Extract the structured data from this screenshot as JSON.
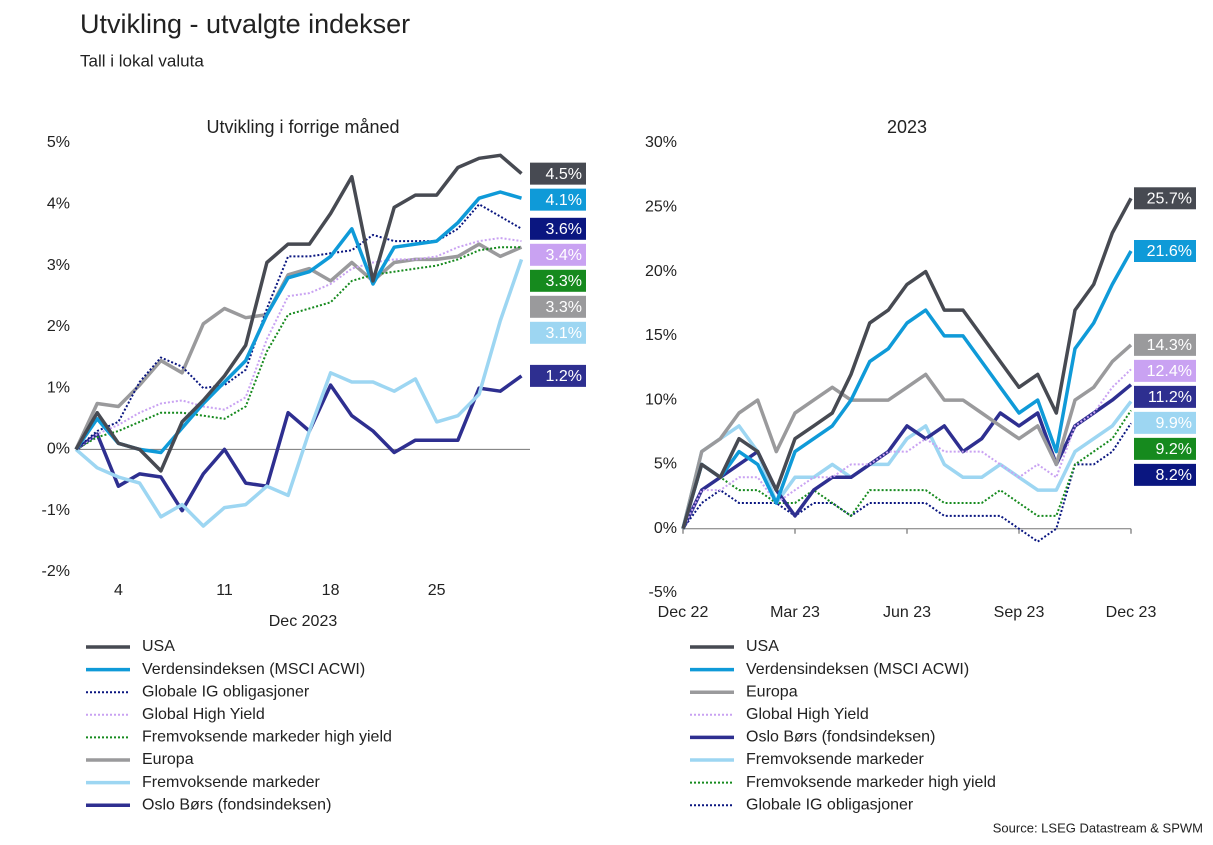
{
  "header": {
    "title": "Utvikling - utvalgte indekser",
    "subtitle": "Tall i lokal valuta"
  },
  "source": "Source: LSEG Datastream & SPWM",
  "chart_data": [
    {
      "type": "line",
      "title": "Utvikling i forrige måned",
      "xlabel": "Dec 2023",
      "categories": [
        null,
        null,
        "4",
        null,
        null,
        null,
        null,
        "11",
        null,
        null,
        null,
        null,
        "18",
        null,
        null,
        null,
        null,
        "25",
        null,
        null,
        null,
        null
      ],
      "ylim": [
        -2,
        5
      ],
      "yticks": [
        {
          "value": -2,
          "label": "-2%"
        },
        {
          "value": -1,
          "label": "-1%"
        },
        {
          "value": 0,
          "label": "0%"
        },
        {
          "value": 1,
          "label": "1%"
        },
        {
          "value": 2,
          "label": "2%"
        },
        {
          "value": 3,
          "label": "3%"
        },
        {
          "value": 4,
          "label": "4%"
        },
        {
          "value": 5,
          "label": "5%"
        }
      ],
      "series": [
        {
          "name": "USA",
          "color": "#474a52",
          "dash": "solid",
          "end_label": "4.5%",
          "values": [
            0,
            0.6,
            0.1,
            0.0,
            -0.35,
            0.45,
            0.8,
            1.2,
            1.7,
            3.05,
            3.35,
            3.35,
            3.85,
            4.45,
            2.75,
            3.95,
            4.15,
            4.15,
            4.6,
            4.75,
            4.8,
            4.5
          ]
        },
        {
          "name": "Verdensindeksen (MSCI ACWI)",
          "color": "#0f9ad8",
          "dash": "solid",
          "end_label": "4.1%",
          "values": [
            0,
            0.5,
            0.1,
            0.0,
            -0.05,
            0.35,
            0.75,
            1.1,
            1.45,
            2.2,
            2.8,
            2.9,
            3.15,
            3.6,
            2.7,
            3.3,
            3.35,
            3.4,
            3.7,
            4.1,
            4.2,
            4.1
          ]
        },
        {
          "name": "Globale IG obligasjoner",
          "color": "#0a1680",
          "dash": "dotted",
          "end_label": "3.6%",
          "values": [
            0,
            0.3,
            0.45,
            1.1,
            1.5,
            1.35,
            1.0,
            1.05,
            1.3,
            2.3,
            3.15,
            3.15,
            3.2,
            3.25,
            3.5,
            3.4,
            3.4,
            3.4,
            3.6,
            4.0,
            3.8,
            3.6
          ]
        },
        {
          "name": "Global High Yield",
          "color": "#c9a2f2",
          "dash": "dotted",
          "end_label": "3.4%",
          "values": [
            0,
            0.25,
            0.4,
            0.6,
            0.75,
            0.8,
            0.7,
            0.65,
            0.85,
            1.8,
            2.5,
            2.55,
            2.7,
            2.95,
            3.05,
            3.1,
            3.1,
            3.15,
            3.3,
            3.4,
            3.45,
            3.4
          ]
        },
        {
          "name": "Fremvoksende markeder high yield",
          "color": "#168a1e",
          "dash": "dotted",
          "end_label": "3.3%",
          "values": [
            0,
            0.2,
            0.3,
            0.45,
            0.6,
            0.6,
            0.55,
            0.5,
            0.7,
            1.6,
            2.2,
            2.3,
            2.4,
            2.75,
            2.85,
            2.9,
            2.95,
            3.0,
            3.1,
            3.25,
            3.3,
            3.3
          ]
        },
        {
          "name": "Europa",
          "color": "#9a9a9c",
          "dash": "solid",
          "end_label": "3.3%",
          "values": [
            0,
            0.75,
            0.7,
            1.05,
            1.45,
            1.25,
            2.05,
            2.3,
            2.15,
            2.2,
            2.85,
            2.95,
            2.75,
            3.05,
            2.75,
            3.05,
            3.1,
            3.1,
            3.15,
            3.35,
            3.15,
            3.3
          ]
        },
        {
          "name": "Fremvoksende markeder",
          "color": "#9dd6f2",
          "dash": "solid",
          "end_label": "3.1%",
          "values": [
            0,
            -0.3,
            -0.45,
            -0.55,
            -1.1,
            -0.9,
            -1.25,
            -0.95,
            -0.9,
            -0.6,
            -0.75,
            0.3,
            1.25,
            1.1,
            1.1,
            0.95,
            1.15,
            0.45,
            0.55,
            0.9,
            2.1,
            3.1
          ]
        },
        {
          "name": "Oslo Børs (fondsindeksen)",
          "color": "#2e2f90",
          "dash": "solid",
          "end_label": "1.2%",
          "values": [
            0,
            0.25,
            -0.6,
            -0.4,
            -0.45,
            -1.0,
            -0.4,
            0.0,
            -0.55,
            -0.6,
            0.6,
            0.3,
            1.05,
            0.55,
            0.3,
            -0.05,
            0.15,
            0.15,
            0.15,
            1.0,
            0.95,
            1.2
          ]
        }
      ]
    },
    {
      "type": "line",
      "title": "2023",
      "x": [
        0,
        0.5,
        1,
        1.5,
        2,
        2.5,
        3,
        3.5,
        4,
        4.5,
        5,
        5.5,
        6,
        6.5,
        7,
        7.5,
        8,
        8.5,
        9,
        9.5,
        10,
        10.5,
        11,
        11.5,
        12
      ],
      "xlim": [
        0,
        12
      ],
      "xticks": [
        {
          "value": 0,
          "label": "Dec 22"
        },
        {
          "value": 3,
          "label": "Mar 23"
        },
        {
          "value": 6,
          "label": "Jun 23"
        },
        {
          "value": 9,
          "label": "Sep 23"
        },
        {
          "value": 12,
          "label": "Dec 23"
        }
      ],
      "ylim": [
        -5,
        30
      ],
      "yticks": [
        {
          "value": -5,
          "label": "-5%"
        },
        {
          "value": 0,
          "label": "0%"
        },
        {
          "value": 5,
          "label": "5%"
        },
        {
          "value": 10,
          "label": "10%"
        },
        {
          "value": 15,
          "label": "15%"
        },
        {
          "value": 20,
          "label": "20%"
        },
        {
          "value": 25,
          "label": "25%"
        },
        {
          "value": 30,
          "label": "30%"
        }
      ],
      "series": [
        {
          "name": "USA",
          "color": "#474a52",
          "dash": "solid",
          "end_label": "25.7%",
          "values": [
            0,
            5,
            4,
            7,
            6,
            3,
            7,
            8,
            9,
            12,
            16,
            17,
            19,
            20,
            17,
            17,
            15,
            13,
            11,
            12,
            9,
            17,
            19,
            23,
            25.7
          ]
        },
        {
          "name": "Verdensindeksen (MSCI ACWI)",
          "color": "#0f9ad8",
          "dash": "solid",
          "end_label": "21.6%",
          "values": [
            0,
            5,
            4,
            6,
            5,
            2,
            6,
            7,
            8,
            10,
            13,
            14,
            16,
            17,
            15,
            15,
            13,
            11,
            9,
            10,
            6,
            14,
            16,
            19,
            21.6
          ]
        },
        {
          "name": "Europa",
          "color": "#9a9a9c",
          "dash": "solid",
          "end_label": "14.3%",
          "values": [
            0,
            6,
            7,
            9,
            10,
            6,
            9,
            10,
            11,
            10,
            10,
            10,
            11,
            12,
            10,
            10,
            9,
            8,
            7,
            8,
            5,
            10,
            11,
            13,
            14.3
          ]
        },
        {
          "name": "Global High Yield",
          "color": "#c9a2f2",
          "dash": "dotted",
          "end_label": "12.4%",
          "values": [
            0,
            3,
            3,
            4,
            4,
            2,
            3,
            4,
            4,
            5,
            5,
            6,
            6,
            7,
            6,
            6,
            6,
            5,
            4,
            5,
            4,
            8,
            9,
            11,
            12.4
          ]
        },
        {
          "name": "Oslo Børs (fondsindeksen)",
          "color": "#2e2f90",
          "dash": "solid",
          "end_label": "11.2%",
          "values": [
            0,
            3,
            4,
            5,
            6,
            3,
            1,
            3,
            4,
            4,
            5,
            6,
            8,
            7,
            8,
            6,
            7,
            9,
            8,
            9,
            5,
            8,
            9,
            10,
            11.2
          ]
        },
        {
          "name": "Fremvoksende markeder",
          "color": "#9dd6f2",
          "dash": "solid",
          "end_label": "9.9%",
          "values": [
            0,
            6,
            7,
            8,
            6,
            2,
            4,
            4,
            5,
            4,
            5,
            5,
            7,
            8,
            5,
            4,
            4,
            5,
            4,
            3,
            3,
            6,
            7,
            8,
            9.9
          ]
        },
        {
          "name": "Fremvoksende markeder high yield",
          "color": "#168a1e",
          "dash": "dotted",
          "end_label": "9.2%",
          "values": [
            0,
            3,
            4,
            3,
            3,
            2,
            2,
            3,
            2,
            1,
            3,
            3,
            3,
            3,
            2,
            2,
            2,
            3,
            2,
            1,
            1,
            5,
            6,
            7,
            9.2
          ]
        },
        {
          "name": "Globale IG obligasjoner",
          "color": "#0a1680",
          "dash": "dotted",
          "end_label": "8.2%",
          "values": [
            0,
            2,
            3,
            2,
            2,
            2,
            1,
            2,
            2,
            1,
            2,
            2,
            2,
            2,
            1,
            1,
            1,
            1,
            0,
            -1,
            0,
            5,
            5,
            6,
            8.2
          ]
        }
      ]
    }
  ]
}
